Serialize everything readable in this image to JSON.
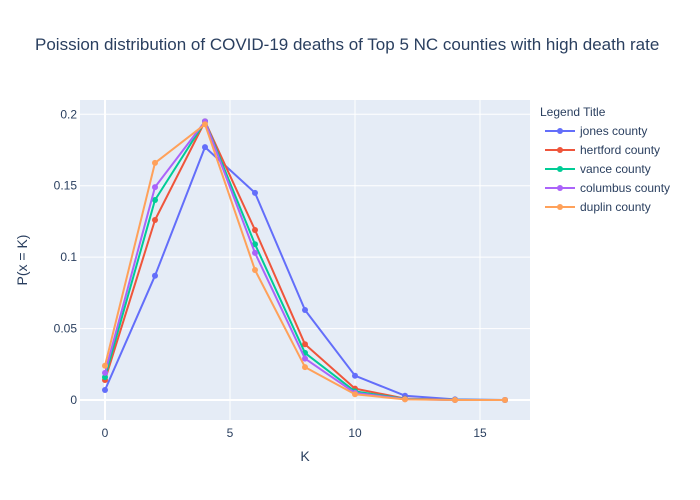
{
  "chart_data": {
    "type": "line",
    "title": "Poission distribution of COVID-19 deaths of Top 5 NC counties with high death rate",
    "xlabel": "K",
    "ylabel": "P(x = K)",
    "xlim": [
      -1,
      17
    ],
    "ylim": [
      -0.014,
      0.21
    ],
    "x_ticks": [
      0,
      5,
      10,
      15
    ],
    "x_tick_labels": [
      "0",
      "5",
      "10",
      "15"
    ],
    "y_ticks": [
      0,
      0.05,
      0.1,
      0.15,
      0.2
    ],
    "y_tick_labels": [
      "0",
      "0.05",
      "0.1",
      "0.15",
      "0.2"
    ],
    "grid": true,
    "legend": {
      "title": "Legend Title",
      "placement": "right"
    },
    "x": [
      0,
      2,
      4,
      6,
      8,
      10,
      12,
      14,
      16
    ],
    "series": [
      {
        "name": "jones county",
        "color": "#636efa",
        "values": [
          0.007,
          0.087,
          0.177,
          0.145,
          0.063,
          0.017,
          0.003,
          0.0004,
          0.0
        ]
      },
      {
        "name": "hertford county",
        "color": "#ef553b",
        "values": [
          0.014,
          0.126,
          0.195,
          0.119,
          0.039,
          0.008,
          0.001,
          0.0001,
          0.0
        ]
      },
      {
        "name": "vance county",
        "color": "#00cc96",
        "values": [
          0.016,
          0.14,
          0.195,
          0.109,
          0.033,
          0.006,
          0.0008,
          0.0001,
          0.0
        ]
      },
      {
        "name": "columbus county",
        "color": "#ab63fa",
        "values": [
          0.019,
          0.149,
          0.195,
          0.103,
          0.029,
          0.005,
          0.0006,
          0.0,
          0.0
        ]
      },
      {
        "name": "duplin county",
        "color": "#ffa15a",
        "values": [
          0.024,
          0.166,
          0.193,
          0.091,
          0.023,
          0.004,
          0.0004,
          0.0,
          0.0
        ]
      }
    ]
  }
}
